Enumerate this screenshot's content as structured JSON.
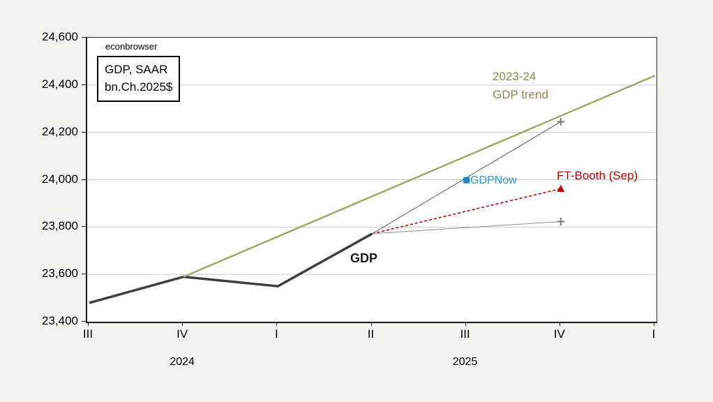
{
  "app": {
    "watermark": "econbrowser"
  },
  "metric_box": {
    "line1": "GDP, SAAR",
    "line2": "bn.Ch.2025$"
  },
  "annotations": {
    "trend_label_line1": "2023-24",
    "trend_label_line2": "GDP trend",
    "gdp_label": "GDP",
    "gdpnow_label": "GDPNow",
    "ftbooth_label": "FT-Booth (Sep)"
  },
  "colors": {
    "page_background": "#f2f2f1",
    "plot_background": "#ffffff",
    "gridline": "#c9c9c9",
    "axis": "#1a1a1a",
    "gdp_line": "#3f3f3f",
    "trend_line": "#a4a565",
    "trend_text": "#8a8a4a",
    "gdpnow_marker": "#1f87c0",
    "gdpnow_text": "#2e96d1",
    "ftbooth_red": "#c00000",
    "scenario_gray_dark": "#595959",
    "scenario_gray_light": "#8c8c8c",
    "plus_marker": "#808080"
  },
  "chart_data": {
    "type": "line",
    "title": "GDP, SAAR bn.Ch.2025$",
    "watermark": "econbrowser",
    "grid": "horizontal",
    "legend_position": "none (direct labels on chart)",
    "ylim": [
      23400,
      24600
    ],
    "ytick_step": 200,
    "y_tick_labels": [
      "23,400",
      "23,600",
      "23,800",
      "24,000",
      "24,200",
      "24,400",
      "24,600"
    ],
    "x_tick_labels": [
      "III",
      "IV",
      "I",
      "II",
      "III",
      "IV",
      "I"
    ],
    "x_years": [
      {
        "label": "2024",
        "tick_index": 1
      },
      {
        "label": "2025",
        "tick_index": 4
      }
    ],
    "x_categories": [
      "2024Q3",
      "2024Q4",
      "2025Q1",
      "2025Q2",
      "2025Q3",
      "2025Q4",
      "2026Q1"
    ],
    "series": [
      {
        "name": "GDP",
        "color": "#3f3f3f",
        "width": 3.5,
        "x": [
          0,
          1,
          2,
          3
        ],
        "values": [
          23480,
          23590,
          23550,
          23772
        ]
      },
      {
        "name": "2023-24 GDP trend",
        "color": "#a4a565",
        "width": 2.5,
        "x": [
          1,
          6
        ],
        "values": [
          23590,
          24440
        ]
      },
      {
        "name": "upper scenario",
        "color": "#595959",
        "width": 1,
        "x": [
          3,
          5
        ],
        "values": [
          23772,
          24245
        ],
        "end_marker": "plus"
      },
      {
        "name": "FT-Booth (Sep)",
        "color": "#c00000",
        "width": 1.6,
        "dash": "4 3",
        "x": [
          3,
          5
        ],
        "values": [
          23772,
          23962
        ],
        "end_marker": "triangle"
      },
      {
        "name": "lower scenario",
        "color": "#8c8c8c",
        "width": 1,
        "x": [
          3,
          5
        ],
        "values": [
          23772,
          23823
        ],
        "end_marker": "plus"
      },
      {
        "name": "GDPNow",
        "color": "#1f87c0",
        "points_only": true,
        "marker": "square",
        "x": [
          4
        ],
        "values": [
          23998
        ]
      }
    ]
  }
}
